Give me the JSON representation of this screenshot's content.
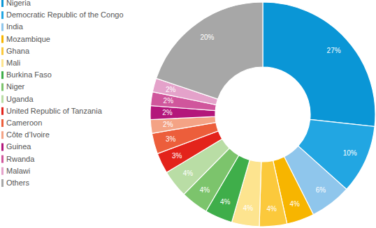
{
  "chart_data": {
    "type": "pie",
    "categories": [
      "Nigeria",
      "Democratic Republic of the Congo",
      "India",
      "Mozambique",
      "Ghana",
      "Mali",
      "Burkina Faso",
      "Niger",
      "Uganda",
      "United Republic of Tanzania",
      "Cameroon",
      "Côte d’Ivoire",
      "Guinea",
      "Rwanda",
      "Malawi",
      "Others"
    ],
    "values": [
      27,
      10,
      6,
      4,
      4,
      4,
      4,
      4,
      4,
      3,
      3,
      2,
      2,
      2,
      2,
      20
    ],
    "value_labels": [
      "27%",
      "10%",
      "6%",
      "4%",
      "4%",
      "4%",
      "4%",
      "4%",
      "4%",
      "3%",
      "3%",
      "2%",
      "2%",
      "2%",
      "2%",
      "20%"
    ],
    "colors": [
      "#0a96d6",
      "#22a6e2",
      "#8fc6ec",
      "#f7b500",
      "#fbc93c",
      "#fde48f",
      "#3fae4a",
      "#7cc46c",
      "#b9dda5",
      "#e3231b",
      "#ec5e3b",
      "#f4a385",
      "#b3167b",
      "#d0569c",
      "#e4a2ca",
      "#a7a7a7"
    ],
    "data_labels": true,
    "legend": "left"
  }
}
